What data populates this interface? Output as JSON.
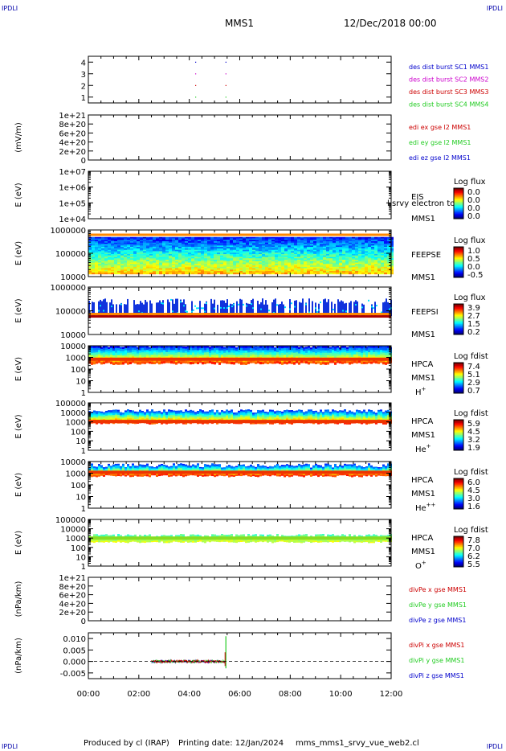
{
  "corner_marks": [
    "IPDLI",
    "IPDLI",
    "IPDLI",
    "IPDLI"
  ],
  "header": {
    "mission": "MMS1",
    "datetime": "12/Dec/2018 00:00"
  },
  "footer": {
    "produced_by": "Produced by cl (IRAP)",
    "printing_date": "Printing date: 12/Jan/2024",
    "script": "mms_mms1_srvy_vue_web2.cl"
  },
  "colors": {
    "axis": "#000000",
    "red": "#cc0000",
    "green": "#22cc22",
    "blue": "#0000cc",
    "magenta": "#cc00cc"
  },
  "chart_data": [
    {
      "id": "des",
      "type": "scatter",
      "title": "",
      "ylabel": "",
      "ylim": [
        0.5,
        4.5
      ],
      "yticks": [
        "1",
        "2",
        "3",
        "4"
      ],
      "ytick_values": [
        1,
        2,
        3,
        4
      ],
      "series": [
        {
          "name": "des dist burst SC1 MMS1",
          "color": "#0000cc",
          "points": [
            [
              4.25,
              4
            ],
            [
              5.45,
              4
            ]
          ]
        },
        {
          "name": "des dist burst SC2 MMS2",
          "color": "#cc00cc",
          "points": [
            [
              4.25,
              3
            ],
            [
              5.45,
              3
            ]
          ]
        },
        {
          "name": "des dist burst SC3 MMS3",
          "color": "#cc0000",
          "points": [
            [
              4.25,
              2
            ],
            [
              5.45,
              2
            ]
          ]
        },
        {
          "name": "des dist burst SC4 MMS4",
          "color": "#22cc22",
          "points": [
            [
              4.25,
              1
            ],
            [
              5.45,
              1
            ]
          ]
        }
      ]
    },
    {
      "id": "edi",
      "type": "line",
      "title": "",
      "ylabel": "(mV/m)",
      "ylim": [
        0,
        1e+21
      ],
      "yticks": [
        "1e+21",
        "8e+20",
        "6e+20",
        "4e+20",
        "2e+20",
        "0"
      ],
      "ytick_values": [
        1e+21,
        8e+20,
        6e+20,
        4e+20,
        2e+20,
        0
      ],
      "zero_line": true,
      "legend": [
        {
          "name": "edi ex gse l2 MMS1",
          "color": "#cc0000"
        },
        {
          "name": "edi ey gse l2 MMS1",
          "color": "#22cc22"
        },
        {
          "name": "edi ez gse l2 MMS1",
          "color": "#0000cc"
        }
      ]
    },
    {
      "id": "eis",
      "type": "heatmap",
      "ylabel": "E (eV)",
      "yticks": [
        "1e+07",
        "1e+06",
        "1e+05",
        "1e+04"
      ],
      "ytick_values": [
        10000000.0,
        1000000.0,
        100000.0,
        10000.0
      ],
      "log_y": true,
      "labels": [
        "EIS",
        "MMS1"
      ],
      "overlay_text": "l srvy electron to",
      "colorbar": {
        "title": "Log flux",
        "ticks": [
          "0.0",
          "0.0",
          "0.0",
          "0.0"
        ]
      }
    },
    {
      "id": "feepse",
      "type": "heatmap",
      "ylabel": "E (eV)",
      "yticks": [
        "1000000",
        "100000",
        "10000"
      ],
      "ytick_values": [
        1000000.0,
        100000.0,
        10000.0
      ],
      "log_y": true,
      "labels": [
        "FEEPSE",
        "MMS1"
      ],
      "colorbar": {
        "title": "Log flux",
        "ticks": [
          "1.0",
          "0.5",
          "0.0",
          "-0.5"
        ]
      }
    },
    {
      "id": "feepsi",
      "type": "heatmap",
      "ylabel": "E (eV)",
      "yticks": [
        "1000000",
        "100000",
        "10000"
      ],
      "ytick_values": [
        1000000.0,
        100000.0,
        10000.0
      ],
      "log_y": true,
      "labels": [
        "FEEPSI",
        "MMS1"
      ],
      "colorbar": {
        "title": "Log flux",
        "ticks": [
          "3.9",
          "2.7",
          "1.5",
          "0.2"
        ]
      }
    },
    {
      "id": "hpca_h",
      "type": "heatmap",
      "ylabel": "E (eV)",
      "yticks": [
        "10000",
        "1000",
        "100",
        "10",
        "1"
      ],
      "ytick_values": [
        10000.0,
        1000.0,
        100.0,
        10.0,
        1
      ],
      "log_y": true,
      "labels": [
        "HPCA",
        "MMS1"
      ],
      "species": "H",
      "species_sup": "+",
      "colorbar": {
        "title": "Log fdist",
        "ticks": [
          "7.4",
          "5.1",
          "2.9",
          "0.7"
        ]
      }
    },
    {
      "id": "hpca_he",
      "type": "heatmap",
      "ylabel": "E (eV)",
      "yticks": [
        "100000",
        "10000",
        "1000",
        "100",
        "10",
        "1"
      ],
      "ytick_values": [
        100000.0,
        10000.0,
        1000.0,
        100.0,
        10.0,
        1
      ],
      "log_y": true,
      "labels": [
        "HPCA",
        "MMS1"
      ],
      "species": "He",
      "species_sup": "+",
      "colorbar": {
        "title": "Log fdist",
        "ticks": [
          "5.9",
          "4.5",
          "3.2",
          "1.9"
        ]
      }
    },
    {
      "id": "hpca_hepp",
      "type": "heatmap",
      "ylabel": "E (eV)",
      "yticks": [
        "10000",
        "1000",
        "100",
        "10",
        "1"
      ],
      "ytick_values": [
        10000.0,
        1000.0,
        100.0,
        10.0,
        1
      ],
      "log_y": true,
      "labels": [
        "HPCA",
        "MMS1"
      ],
      "species": "He",
      "species_sup": "++",
      "colorbar": {
        "title": "Log fdist",
        "ticks": [
          "6.0",
          "4.5",
          "3.0",
          "1.6"
        ]
      }
    },
    {
      "id": "hpca_o",
      "type": "heatmap",
      "ylabel": "E (eV)",
      "yticks": [
        "100000",
        "10000",
        "1000",
        "100",
        "10",
        "1"
      ],
      "ytick_values": [
        100000.0,
        10000.0,
        1000.0,
        100.0,
        10.0,
        1
      ],
      "log_y": true,
      "labels": [
        "HPCA",
        "MMS1"
      ],
      "species": "O",
      "species_sup": "+",
      "colorbar": {
        "title": "Log fdist",
        "ticks": [
          "7.8",
          "7.0",
          "6.2",
          "5.5"
        ]
      }
    },
    {
      "id": "divpe",
      "type": "line",
      "ylabel": "(nPa/km)",
      "ylim": [
        0,
        1e+21
      ],
      "yticks": [
        "1e+21",
        "8e+20",
        "6e+20",
        "4e+20",
        "2e+20",
        "0"
      ],
      "ytick_values": [
        1e+21,
        8e+20,
        6e+20,
        4e+20,
        2e+20,
        0
      ],
      "zero_line": true,
      "legend": [
        {
          "name": "divPe x gse MMS1",
          "color": "#cc0000"
        },
        {
          "name": "divPe y gse MMS1",
          "color": "#22cc22"
        },
        {
          "name": "divPe z gse MMS1",
          "color": "#0000cc"
        }
      ]
    },
    {
      "id": "divpi",
      "type": "line",
      "ylabel": "(nPa/km)",
      "ylim": [
        -0.0075,
        0.0125
      ],
      "yticks": [
        "0.010",
        "0.005",
        "0.000",
        "-0.005"
      ],
      "ytick_values": [
        0.01,
        0.005,
        0.0,
        -0.005
      ],
      "zero_line": true,
      "data_range_hours": [
        2.5,
        5.45
      ],
      "spike_hour": 5.45,
      "spike_range": [
        -0.003,
        0.011
      ],
      "legend": [
        {
          "name": "divPi x gse MMS1",
          "color": "#cc0000"
        },
        {
          "name": "divPi y gse MMS1",
          "color": "#22cc22"
        },
        {
          "name": "divPi z gse MMS1",
          "color": "#0000cc"
        }
      ]
    }
  ],
  "x_axis": {
    "range_hours": [
      0,
      12
    ],
    "ticks": [
      "00:00",
      "02:00",
      "04:00",
      "06:00",
      "08:00",
      "10:00",
      "12:00"
    ],
    "tick_values": [
      0,
      2,
      4,
      6,
      8,
      10,
      12
    ]
  }
}
